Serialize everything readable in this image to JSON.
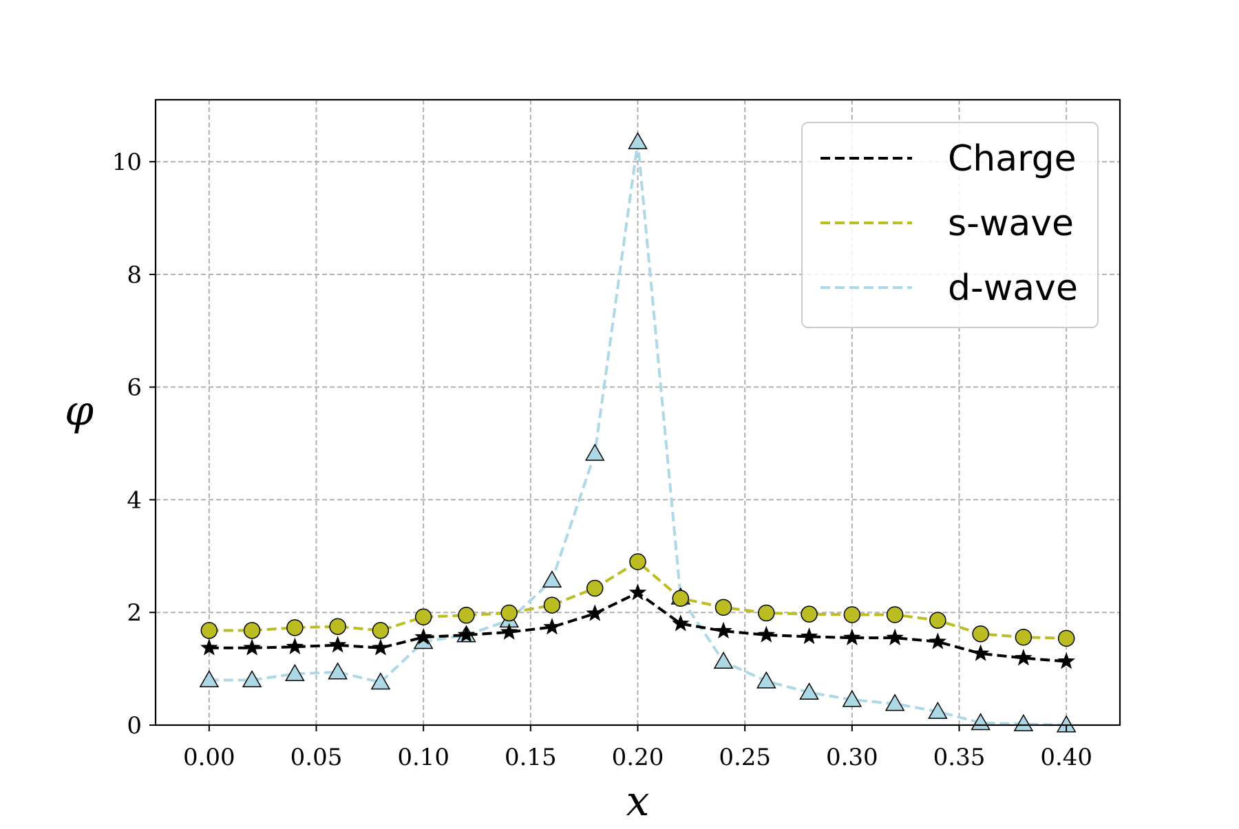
{
  "chart_data": {
    "type": "line",
    "title": "",
    "xlabel": "x",
    "ylabel": "φ",
    "xlim": [
      -0.025,
      0.425
    ],
    "ylim": [
      0,
      11.1
    ],
    "grid": true,
    "legend_position": "top-right",
    "x_ticks": [
      0.0,
      0.05,
      0.1,
      0.15,
      0.2,
      0.25,
      0.3,
      0.35,
      0.4
    ],
    "x_tick_labels": [
      "0.00",
      "0.05",
      "0.10",
      "0.15",
      "0.20",
      "0.25",
      "0.30",
      "0.35",
      "0.40"
    ],
    "y_ticks": [
      0,
      2,
      4,
      6,
      8,
      10
    ],
    "y_tick_labels": [
      "0",
      "2",
      "4",
      "6",
      "8",
      "10"
    ],
    "x": [
      0.0,
      0.02,
      0.04,
      0.06,
      0.08,
      0.1,
      0.12,
      0.14,
      0.16,
      0.18,
      0.2,
      0.22,
      0.24,
      0.26,
      0.28,
      0.3,
      0.32,
      0.34,
      0.36,
      0.38,
      0.4
    ],
    "series": [
      {
        "name": "Charge",
        "color": "#000000",
        "marker": "star",
        "values": [
          1.37,
          1.37,
          1.39,
          1.42,
          1.37,
          1.56,
          1.6,
          1.65,
          1.74,
          1.98,
          2.35,
          1.8,
          1.67,
          1.6,
          1.57,
          1.55,
          1.55,
          1.48,
          1.27,
          1.19,
          1.13
        ]
      },
      {
        "name": "s-wave",
        "color": "#bcbd22",
        "marker": "circle",
        "values": [
          1.68,
          1.68,
          1.73,
          1.75,
          1.68,
          1.92,
          1.95,
          1.99,
          2.13,
          2.43,
          2.9,
          2.25,
          2.09,
          1.99,
          1.97,
          1.96,
          1.96,
          1.86,
          1.62,
          1.56,
          1.54
        ]
      },
      {
        "name": "d-wave",
        "color": "#add8e6",
        "marker": "triangle",
        "values": [
          0.8,
          0.8,
          0.91,
          0.94,
          0.76,
          1.48,
          1.6,
          1.86,
          2.57,
          4.82,
          10.35,
          2.27,
          1.13,
          0.78,
          0.58,
          0.45,
          0.38,
          0.24,
          0.04,
          0.02,
          0.0
        ]
      }
    ]
  }
}
